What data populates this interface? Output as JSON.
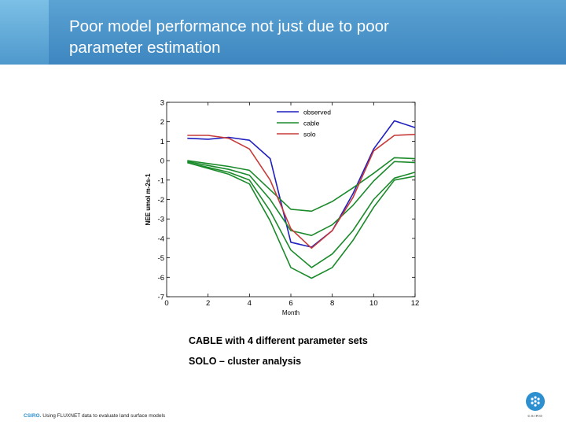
{
  "slide": {
    "title_line1": "Poor model performance not just due to poor",
    "title_line2": "parameter estimation",
    "caption_1": "CABLE with 4 different parameter sets",
    "caption_2": "SOLO – cluster analysis",
    "footer_brand": "CSIRO.",
    "footer_text": " Using FLUXNET data to evaluate land surface models",
    "logo_text": "CSIRO",
    "header_color": "#4a93c9",
    "accent_color": "#2c8fd0"
  },
  "chart_data": {
    "type": "line",
    "xlabel": "Month",
    "ylabel": "NEE umol m-2s-1",
    "xlim": [
      0,
      12
    ],
    "ylim": [
      -7,
      3
    ],
    "xticks": [
      0,
      2,
      4,
      6,
      8,
      10,
      12
    ],
    "yticks": [
      3,
      2,
      1,
      0,
      -1,
      -2,
      -3,
      -4,
      -5,
      -6,
      -7
    ],
    "grid": false,
    "legend_position": "top-right",
    "x": [
      1,
      2,
      3,
      4,
      5,
      6,
      7,
      8,
      9,
      10,
      11,
      12
    ],
    "series": [
      {
        "name": "observed",
        "color": "#1f1fbf",
        "values": [
          1.15,
          1.1,
          1.2,
          1.05,
          0.1,
          -4.2,
          -4.45,
          -3.6,
          -1.7,
          0.6,
          2.05,
          1.7
        ]
      },
      {
        "name": "cable",
        "color": "#1a8a2a",
        "values": [
          0.0,
          -0.15,
          -0.3,
          -0.5,
          -1.5,
          -2.5,
          -2.6,
          -2.1,
          -1.4,
          -0.65,
          0.15,
          0.1
        ]
      },
      {
        "color": "#1a8a2a",
        "values": [
          -0.05,
          -0.25,
          -0.45,
          -0.75,
          -2.0,
          -3.6,
          -3.85,
          -3.3,
          -2.3,
          -1.05,
          -0.05,
          -0.1
        ]
      },
      {
        "color": "#1a8a2a",
        "values": [
          -0.1,
          -0.35,
          -0.6,
          -1.0,
          -2.6,
          -4.6,
          -5.5,
          -4.8,
          -3.6,
          -2.0,
          -0.9,
          -0.6
        ]
      },
      {
        "color": "#1a8a2a",
        "values": [
          -0.1,
          -0.4,
          -0.7,
          -1.2,
          -3.1,
          -5.5,
          -6.05,
          -5.5,
          -4.1,
          -2.4,
          -1.0,
          -0.8
        ]
      },
      {
        "name": "solo",
        "color": "#c83a3a",
        "values": [
          1.3,
          1.3,
          1.15,
          0.6,
          -1.0,
          -3.5,
          -4.5,
          -3.6,
          -1.9,
          0.5,
          1.3,
          1.35
        ]
      }
    ]
  }
}
